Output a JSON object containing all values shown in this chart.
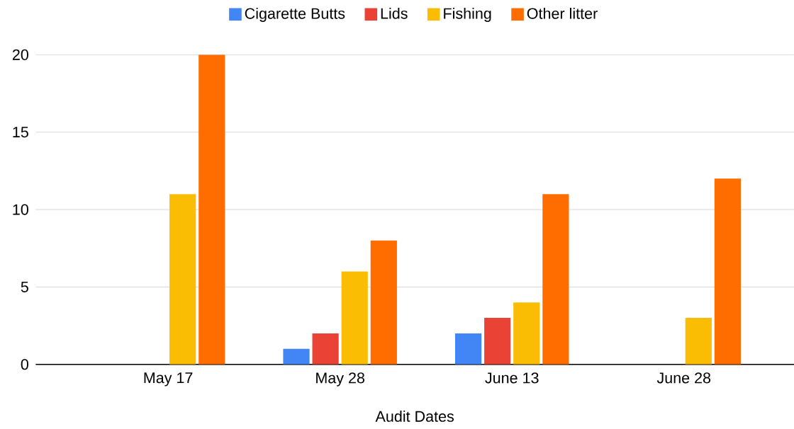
{
  "chart_data": {
    "type": "bar",
    "xlabel": "Audit Dates",
    "categories": [
      "May 17",
      "May 28",
      "June 13",
      "June 28"
    ],
    "series": [
      {
        "name": "Cigarette Butts",
        "color": "#4285f4",
        "values": [
          0,
          1,
          2,
          0
        ]
      },
      {
        "name": "Lids",
        "color": "#ea4335",
        "values": [
          0,
          2,
          3,
          0
        ]
      },
      {
        "name": "Fishing",
        "color": "#fbbc04",
        "values": [
          11,
          6,
          4,
          3
        ]
      },
      {
        "name": "Other litter",
        "color": "#ff6d01",
        "values": [
          20,
          8,
          11,
          12
        ]
      }
    ],
    "ylim": [
      0,
      20
    ],
    "yticks": [
      0,
      5,
      10,
      15,
      20
    ],
    "grid": "y",
    "legend": "top"
  }
}
